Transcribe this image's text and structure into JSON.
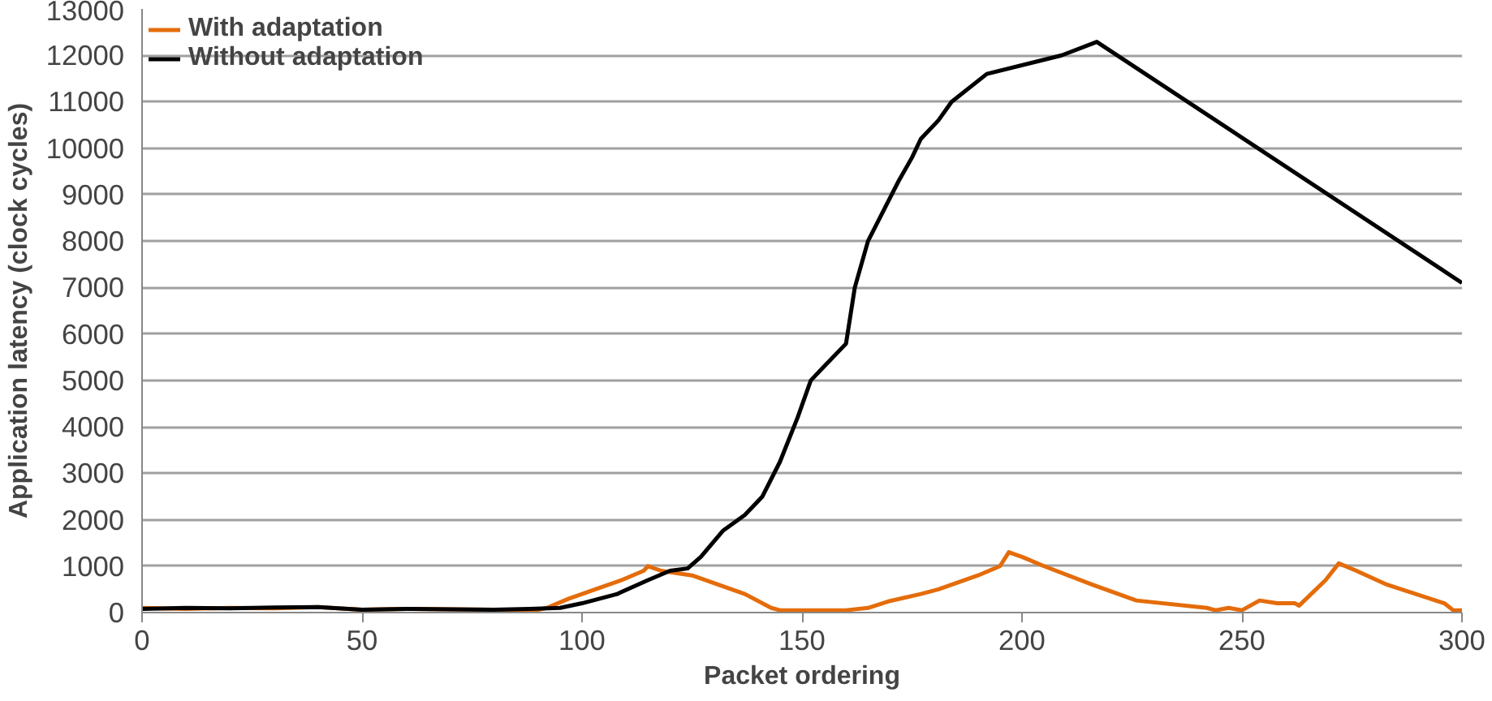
{
  "chart_data": {
    "type": "line",
    "xlabel": "Packet ordering",
    "ylabel": "Application latency (clock cycles)",
    "xlim": [
      0,
      300
    ],
    "xticks": [
      0,
      50,
      100,
      150,
      200,
      250,
      300
    ],
    "ylim": [
      0,
      13000
    ],
    "yticks": [
      0,
      1000,
      2000,
      3000,
      4000,
      5000,
      6000,
      7000,
      8000,
      9000,
      10000,
      11000,
      12000,
      13000
    ],
    "grid": "y",
    "legend": "top left",
    "marker": "none",
    "line_style": "solid",
    "series": [
      {
        "name": "With adaptation",
        "color": "#e46c0a",
        "x": [
          0,
          10,
          20,
          30,
          40,
          50,
          60,
          70,
          80,
          90,
          92,
          97,
          103,
          109,
          114,
          115,
          118,
          125,
          131,
          137,
          143,
          145,
          160,
          165,
          170,
          177,
          181,
          190,
          195,
          197,
          200,
          205,
          216,
          226,
          242,
          244,
          247,
          250,
          254,
          258,
          262,
          263,
          269,
          272,
          276,
          283,
          296,
          298,
          300
        ],
        "values": [
          100,
          80,
          100,
          90,
          120,
          60,
          80,
          70,
          60,
          60,
          100,
          300,
          500,
          700,
          900,
          1000,
          900,
          800,
          600,
          400,
          100,
          50,
          50,
          100,
          250,
          400,
          500,
          800,
          1000,
          1300,
          1200,
          1000,
          600,
          260,
          100,
          50,
          100,
          50,
          260,
          200,
          200,
          150,
          700,
          1060,
          900,
          600,
          200,
          50,
          50
        ]
      },
      {
        "name": "Without adaptation",
        "color": "#000000",
        "x": [
          0,
          10,
          20,
          30,
          40,
          50,
          60,
          70,
          80,
          88,
          95,
          100,
          108,
          115,
          120,
          124,
          127,
          132,
          137,
          141,
          145,
          149,
          152,
          155,
          160,
          162,
          165,
          170,
          172,
          175,
          177,
          181,
          184,
          192,
          209,
          217,
          300
        ],
        "values": [
          80,
          100,
          90,
          110,
          120,
          60,
          80,
          70,
          60,
          80,
          100,
          200,
          400,
          700,
          900,
          950,
          1200,
          1760,
          2100,
          2500,
          3250,
          4200,
          5000,
          5300,
          5790,
          7000,
          8000,
          8930,
          9300,
          9800,
          10200,
          10600,
          11000,
          11600,
          12000,
          12290,
          7100
        ]
      }
    ]
  }
}
